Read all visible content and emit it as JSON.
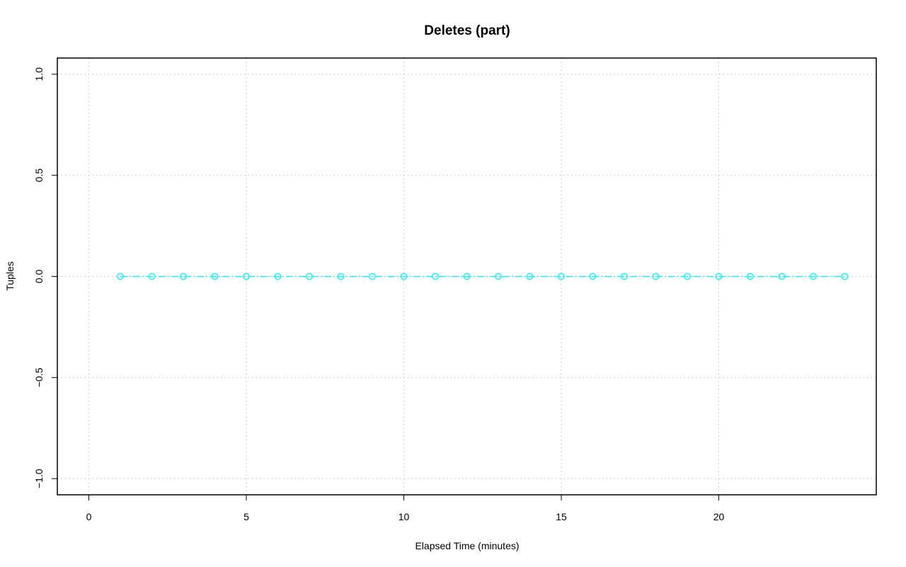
{
  "chart_data": {
    "type": "line",
    "title": "Deletes (part)",
    "xlabel": "Elapsed Time (minutes)",
    "ylabel": "Tuples",
    "xlim": [
      -1,
      25
    ],
    "ylim": [
      -1.08,
      1.08
    ],
    "xticks": [
      0,
      5,
      10,
      15,
      20
    ],
    "yticks": [
      -1.0,
      -0.5,
      0.0,
      0.5,
      1.0
    ],
    "ytick_labels": [
      "−1.0",
      "−0.5",
      "0.0",
      "0.5",
      "1.0"
    ],
    "grid": true,
    "legend": "none",
    "series": [
      {
        "color": "#00ffff",
        "marker": "circle",
        "line_style": "dash-dot",
        "x": [
          1,
          2,
          3,
          4,
          5,
          6,
          7,
          8,
          9,
          10,
          11,
          12,
          13,
          14,
          15,
          16,
          17,
          18,
          19,
          20,
          21,
          22,
          23,
          24
        ],
        "values": [
          0,
          0,
          0,
          0,
          0,
          0,
          0,
          0,
          0,
          0,
          0,
          0,
          0,
          0,
          0,
          0,
          0,
          0,
          0,
          0,
          0,
          0,
          0,
          0
        ]
      }
    ]
  }
}
